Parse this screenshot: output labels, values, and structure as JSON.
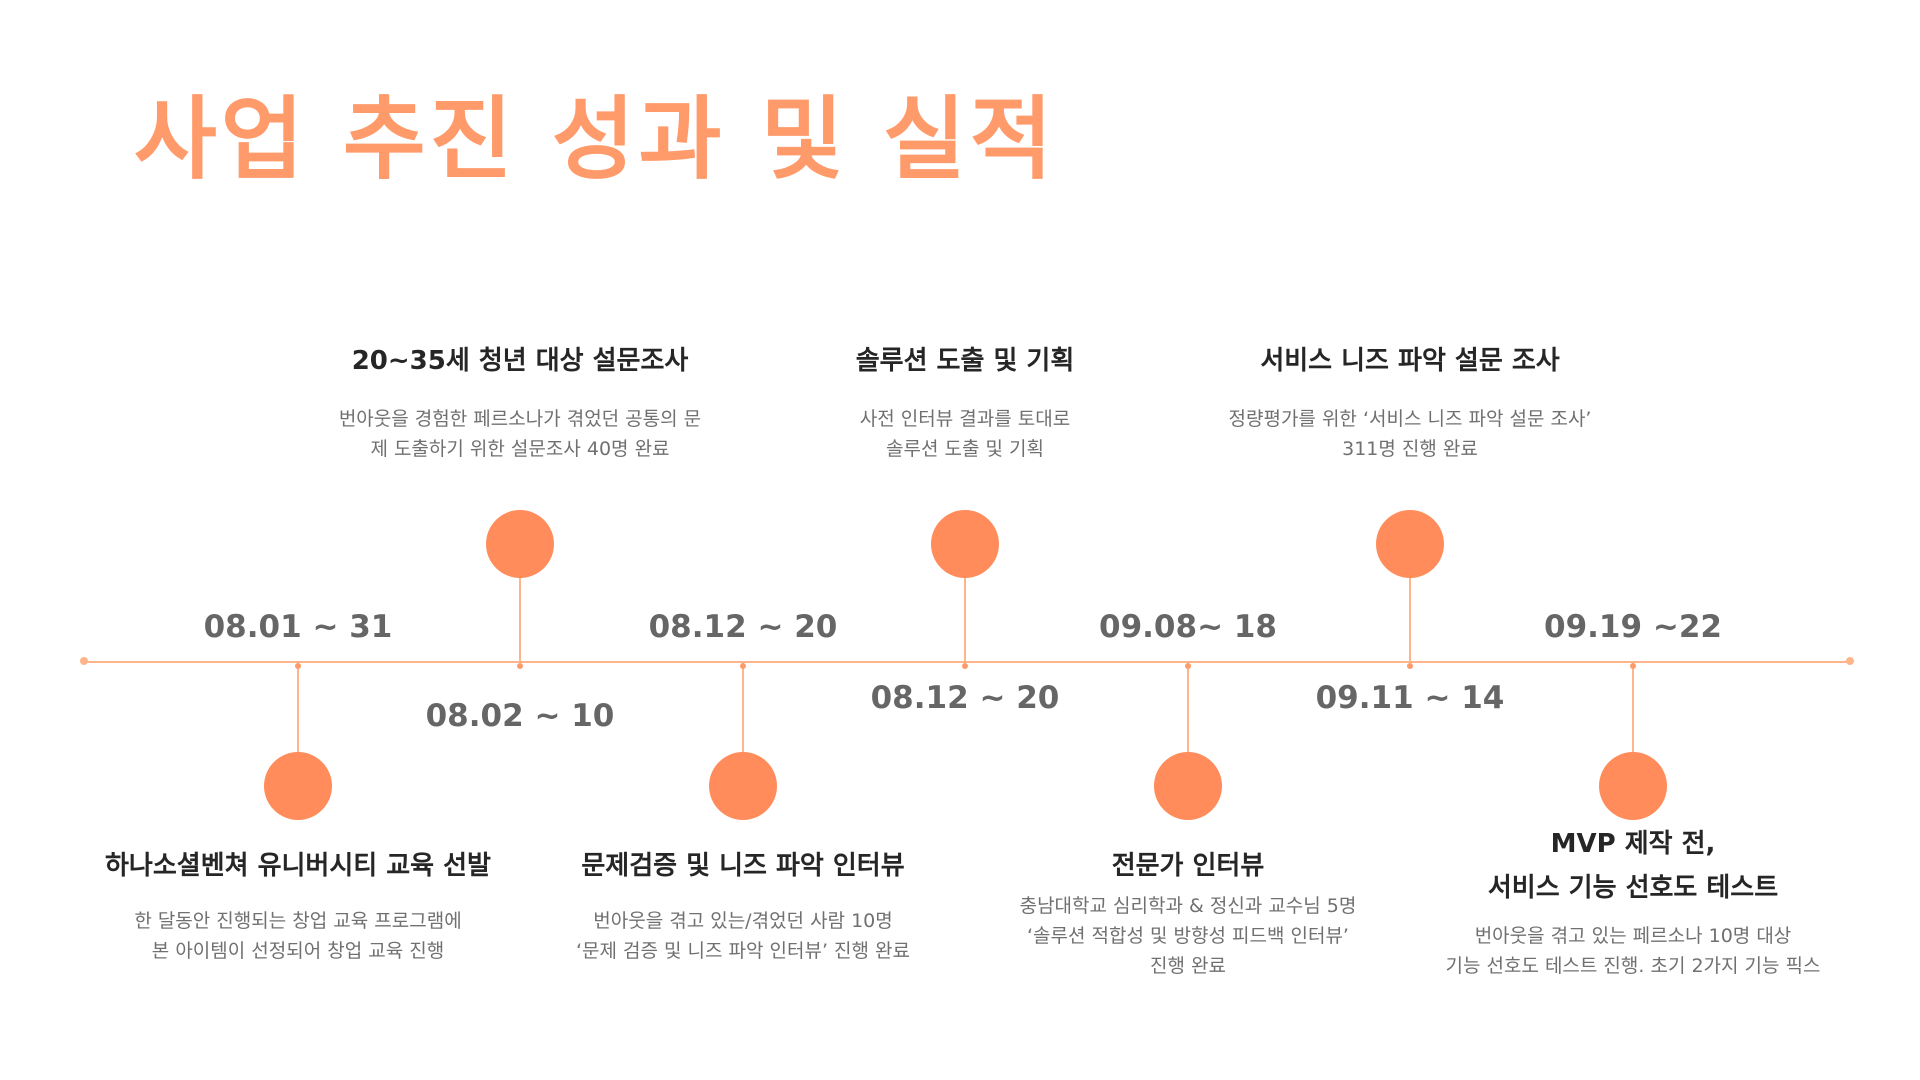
{
  "title": "사업 추진 성과 및 실적",
  "accent_color": "#ff8c5a",
  "line_color": "#ffb48a",
  "title_color": "#ff9b6b",
  "events": [
    {
      "date": "08.01 ~ 31",
      "title": [
        "하나소셜벤쳐 유니버시티 교육 선발"
      ],
      "desc": [
        "한 달동안 진행되는 창업 교육 프로그램에",
        "본 아이템이 선정되어 창업 교육 진행"
      ]
    },
    {
      "date": "08.02 ~ 10",
      "title": [
        "20~35세 청년 대상 설문조사"
      ],
      "desc": [
        "번아웃을 경험한 페르소나가 겪었던 공통의 문",
        "제 도출하기 위한 설문조사 40명 완료"
      ]
    },
    {
      "date": "08.12 ~ 20",
      "title": [
        "문제검증 및 니즈 파악 인터뷰"
      ],
      "desc": [
        "번아웃을 겪고 있는/겪었던 사람 10명",
        "‘문제 검증 및 니즈 파악 인터뷰’ 진행 완료"
      ]
    },
    {
      "date": "08.12 ~ 20",
      "title": [
        "솔루션 도출 및 기획"
      ],
      "desc": [
        "사전 인터뷰 결과를 토대로",
        "솔루션 도출 및 기획"
      ]
    },
    {
      "date": "09.08~ 18",
      "title": [
        "전문가 인터뷰"
      ],
      "desc": [
        "충남대학교 심리학과 & 정신과 교수님 5명",
        "‘솔루션 적합성 및 방향성 피드백 인터뷰’",
        "진행 완료"
      ]
    },
    {
      "date": "09.11 ~ 14",
      "title": [
        "서비스 니즈 파악 설문 조사"
      ],
      "desc": [
        "정량평가를 위한 ‘서비스 니즈 파악 설문 조사’",
        "311명 진행 완료"
      ]
    },
    {
      "date": "09.19 ~22",
      "title": [
        "MVP 제작 전,",
        "서비스 기능 선호도 테스트"
      ],
      "desc": [
        "번아웃을 겪고 있는 페르소나 10명 대상",
        "기능 선호도 테스트 진행. 초기 2가지 기능 픽스"
      ]
    }
  ]
}
